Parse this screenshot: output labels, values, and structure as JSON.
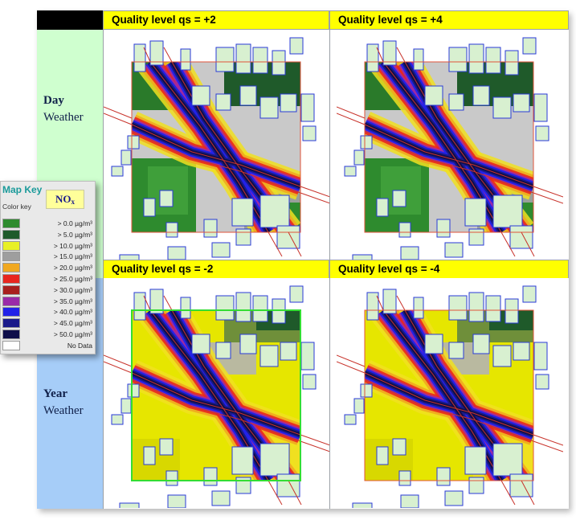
{
  "headers": [
    {
      "label": "Quality level qs = +2"
    },
    {
      "label": "Quality level qs = +4"
    },
    {
      "label": "Quality level qs = -2"
    },
    {
      "label": "Quality level qs = -4"
    }
  ],
  "rows": {
    "day": {
      "line1": "Day",
      "line2": "Weather"
    },
    "year": {
      "line1": "Year",
      "line2": "Weather"
    }
  },
  "legend": {
    "title": "Map Key",
    "subtitle": "Color key",
    "badge_main": "NO",
    "badge_sub": "x",
    "items": [
      {
        "label": "> 0.0 µg/m³",
        "color": "#2e8b2e"
      },
      {
        "label": "> 5.0 µg/m³",
        "color": "#1f5a2a"
      },
      {
        "label": "> 10.0 µg/m³",
        "color": "#e8f026"
      },
      {
        "label": "> 15.0 µg/m³",
        "color": "#9e9e9e"
      },
      {
        "label": "> 20.0 µg/m³",
        "color": "#f0a820"
      },
      {
        "label": "> 25.0 µg/m³",
        "color": "#e8261e"
      },
      {
        "label": "> 30.0 µg/m³",
        "color": "#a8201e"
      },
      {
        "label": "> 35.0 µg/m³",
        "color": "#9a2aa8"
      },
      {
        "label": "> 40.0 µg/m³",
        "color": "#2222e8"
      },
      {
        "label": "> 45.0 µg/m³",
        "color": "#1a1a8a"
      },
      {
        "label": "> 50.0 µg/m³",
        "color": "#0e0e4a"
      },
      {
        "label": "No Data",
        "color": "#ffffff"
      }
    ]
  },
  "colors": {
    "header_bg": "#ffff00",
    "day_bg": "#cfffcf",
    "year_bg": "#a6cdf8",
    "grid_border_default": "#e0533a",
    "grid_border_selected": "#33dd33"
  },
  "maps": [
    {
      "variant": "day_plus2",
      "selected": false,
      "green_zone": true
    },
    {
      "variant": "day_plus4",
      "selected": false,
      "green_zone": true
    },
    {
      "variant": "year_minus2",
      "selected": true,
      "green_zone": false
    },
    {
      "variant": "year_minus4",
      "selected": false,
      "green_zone": false
    }
  ]
}
